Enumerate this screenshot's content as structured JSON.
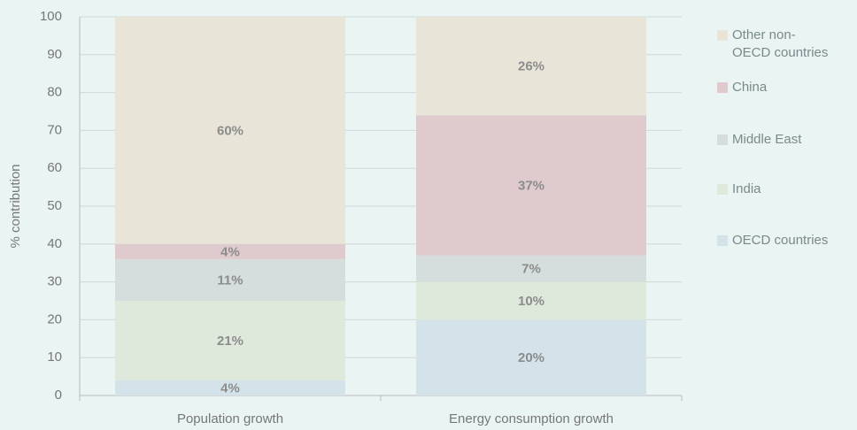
{
  "chart_data": {
    "type": "stacked_bar",
    "categories": [
      "Population growth",
      "Energy consumption growth"
    ],
    "y_label": "% contribution",
    "ylim": [
      0,
      100
    ],
    "yticks": [
      0,
      10,
      20,
      30,
      40,
      50,
      60,
      70,
      80,
      90,
      100
    ],
    "grid": true,
    "legend": "right",
    "series": [
      {
        "name": "OECD countries",
        "color": "#d3e3e9",
        "values": [
          4,
          20
        ],
        "value_labels": [
          "4%",
          "20%"
        ]
      },
      {
        "name": "India",
        "color": "#dee9dc",
        "values": [
          21,
          10
        ],
        "value_labels": [
          "21%",
          "10%"
        ]
      },
      {
        "name": "Middle East",
        "color": "#d5dedd",
        "values": [
          11,
          7
        ],
        "value_labels": [
          "11%",
          "7%"
        ]
      },
      {
        "name": "China",
        "color": "#dfcbcd",
        "values": [
          4,
          37
        ],
        "value_labels": [
          "4%",
          "37%"
        ]
      },
      {
        "name": "Other non-OECD countries",
        "color": "#e8e4d8",
        "values": [
          60,
          26
        ],
        "value_labels": [
          "60%",
          "26%"
        ]
      }
    ]
  }
}
